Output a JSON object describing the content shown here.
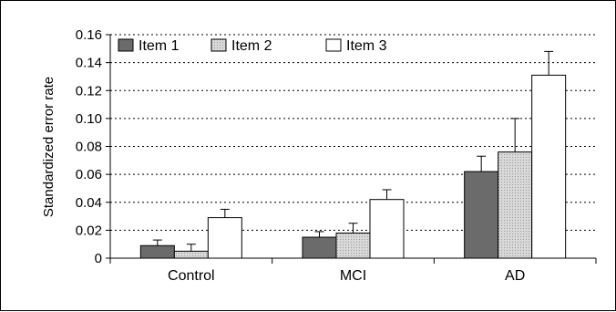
{
  "chart_data": {
    "type": "bar",
    "title": "",
    "xlabel": "",
    "ylabel": "Standardized error rate",
    "categories": [
      "Control",
      "MCI",
      "AD"
    ],
    "series": [
      {
        "name": "Item 1",
        "values": [
          0.009,
          0.015,
          0.062
        ],
        "errors": [
          0.004,
          0.004,
          0.011
        ]
      },
      {
        "name": "Item 2",
        "values": [
          0.005,
          0.018,
          0.076
        ],
        "errors": [
          0.005,
          0.007,
          0.024
        ]
      },
      {
        "name": "Item 3",
        "values": [
          0.029,
          0.042,
          0.131
        ],
        "errors": [
          0.006,
          0.007,
          0.017
        ]
      }
    ],
    "ylim": [
      0,
      0.16
    ],
    "yticks": [
      "0",
      "0.02",
      "0.04",
      "0.06",
      "0.08",
      "0.10",
      "0.12",
      "0.14",
      "0.16"
    ],
    "grid": true,
    "legend_position": "top-left",
    "colors": {
      "Item 1": "#6b6b6b",
      "Item 2": "#d4d4d4",
      "Item 3": "#ffffff"
    }
  }
}
